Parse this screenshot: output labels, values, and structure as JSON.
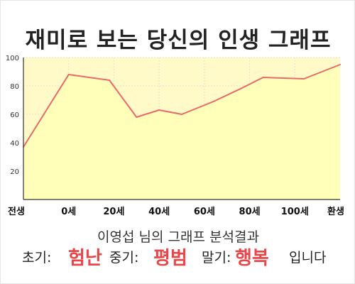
{
  "page": {
    "title": "재미로 보는 당신의 인생 그래프",
    "result_heading": "이영섭 님의 그래프 분석결과",
    "result": {
      "early_label": "초기:",
      "early_value": "험난",
      "middle_label": "중기:",
      "middle_value": "평범",
      "late_label": "말기:",
      "late_value": "행복",
      "suffix": "입니다"
    },
    "colors": {
      "plot_fill": "#fffac8",
      "area_fill": "#ffffb8",
      "line": "#e86a6a",
      "grid": "#e2e2d2",
      "highlight": "#e8474a"
    }
  },
  "chart_data": {
    "type": "area",
    "x": [
      "전생",
      "0세",
      "20세",
      "40세",
      "60세",
      "80세",
      "100세",
      "환생"
    ],
    "y_ticks": [
      20,
      40,
      60,
      80,
      100
    ],
    "ylim": [
      0,
      100
    ],
    "grid": true,
    "points": [
      {
        "x": 0,
        "y": 37
      },
      {
        "x": 1,
        "y": 88
      },
      {
        "x": 1.9,
        "y": 84
      },
      {
        "x": 2.5,
        "y": 58
      },
      {
        "x": 3.0,
        "y": 63
      },
      {
        "x": 3.5,
        "y": 60
      },
      {
        "x": 4.2,
        "y": 69
      },
      {
        "x": 4.8,
        "y": 78
      },
      {
        "x": 5.3,
        "y": 86
      },
      {
        "x": 6.2,
        "y": 85
      },
      {
        "x": 7.0,
        "y": 95
      }
    ]
  }
}
